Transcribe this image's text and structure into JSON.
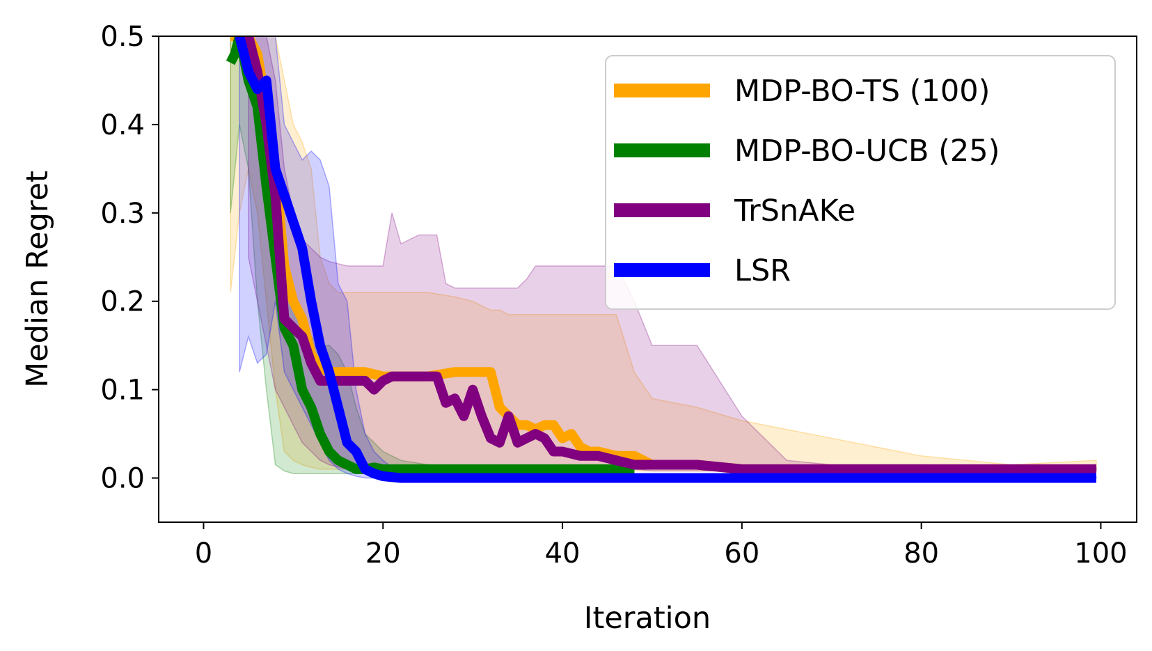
{
  "chart_data": {
    "type": "line",
    "title": "",
    "xlabel": "Iteration",
    "ylabel": "Median Regret",
    "xlim": [
      -5,
      104
    ],
    "ylim": [
      -0.05,
      0.5
    ],
    "xticks": [
      0,
      20,
      40,
      60,
      80,
      100
    ],
    "xtick_labels": [
      "0",
      "20",
      "40",
      "60",
      "80",
      "100"
    ],
    "yticks": [
      0.0,
      0.1,
      0.2,
      0.3,
      0.4,
      0.5
    ],
    "ytick_labels": [
      "0.0",
      "0.1",
      "0.2",
      "0.3",
      "0.4",
      "0.5"
    ],
    "legend_position": "top-right",
    "series": [
      {
        "name": "MDP-BO-TS (100)",
        "color": "#FFA500",
        "x": [
          3,
          4,
          5,
          6,
          7,
          8,
          9,
          10,
          11,
          12,
          13,
          14,
          15,
          16,
          18,
          20,
          22,
          25,
          28,
          30,
          32,
          33,
          34,
          35,
          36,
          37,
          38,
          39,
          40,
          41,
          42,
          43,
          44,
          46,
          48,
          50,
          55,
          60,
          70,
          80,
          90,
          99.5
        ],
        "values": [
          0.5,
          0.5,
          0.5,
          0.48,
          0.42,
          0.35,
          0.24,
          0.2,
          0.18,
          0.14,
          0.125,
          0.12,
          0.12,
          0.12,
          0.12,
          0.115,
          0.115,
          0.115,
          0.12,
          0.12,
          0.12,
          0.08,
          0.07,
          0.06,
          0.06,
          0.055,
          0.06,
          0.06,
          0.045,
          0.05,
          0.035,
          0.03,
          0.03,
          0.025,
          0.025,
          0.015,
          0.015,
          0.01,
          0.01,
          0.01,
          0.01,
          0.01
        ],
        "band_upper": [
          0.5,
          0.5,
          0.5,
          0.5,
          0.5,
          0.5,
          0.45,
          0.4,
          0.38,
          0.35,
          0.25,
          0.22,
          0.21,
          0.21,
          0.21,
          0.21,
          0.21,
          0.21,
          0.205,
          0.2,
          0.19,
          0.19,
          0.185,
          0.185,
          0.185,
          0.185,
          0.185,
          0.185,
          0.185,
          0.185,
          0.185,
          0.185,
          0.185,
          0.185,
          0.12,
          0.09,
          0.08,
          0.065,
          0.045,
          0.025,
          0.015,
          0.02
        ],
        "band_lower": [
          0.21,
          0.3,
          0.35,
          0.3,
          0.2,
          0.1,
          0.03,
          0.02,
          0.015,
          0.012,
          0.01,
          0.01,
          0.01,
          0.01,
          0.01,
          0.008,
          0.008,
          0.008,
          0.008,
          0.008,
          0.008,
          0.008,
          0.008,
          0.008,
          0.008,
          0.008,
          0.008,
          0.008,
          0.008,
          0.008,
          0.008,
          0.008,
          0.008,
          0.008,
          0.008,
          0.008,
          0.008,
          0.008,
          0.008,
          0.008,
          0.008,
          0.008
        ]
      },
      {
        "name": "MDP-BO-UCB (25)",
        "color": "#008000",
        "x": [
          3,
          3.5,
          4,
          5,
          6,
          7,
          8,
          9,
          10,
          11,
          12,
          13,
          14,
          15,
          16,
          17,
          18,
          19,
          20,
          22,
          25,
          30,
          40,
          48
        ],
        "values": [
          0.47,
          0.48,
          0.5,
          0.45,
          0.42,
          0.33,
          0.25,
          0.17,
          0.15,
          0.1,
          0.08,
          0.05,
          0.03,
          0.02,
          0.015,
          0.01,
          0.01,
          0.012,
          0.01,
          0.01,
          0.01,
          0.01,
          0.01,
          0.01
        ],
        "band_upper": [
          0.5,
          0.5,
          0.5,
          0.48,
          0.45,
          0.35,
          0.3,
          0.25,
          0.2,
          0.18,
          0.16,
          0.15,
          0.15,
          0.14,
          0.12,
          0.08,
          0.05,
          0.04,
          0.03,
          0.02,
          0.015,
          0.013,
          0.012,
          0.011
        ],
        "band_lower": [
          0.3,
          0.35,
          0.4,
          0.35,
          0.2,
          0.1,
          0.015,
          0.008,
          0.005,
          0.005,
          0.005,
          0.005,
          0.005,
          0.005,
          0.005,
          0.005,
          0.005,
          0.005,
          0.005,
          0.005,
          0.005,
          0.005,
          0.005,
          0.005
        ]
      },
      {
        "name": "TrSnAKe",
        "color": "#800080",
        "x": [
          5,
          6,
          7,
          8,
          9,
          10,
          11,
          12,
          13,
          14,
          16,
          18,
          19,
          20,
          21,
          22,
          24,
          26,
          27,
          28,
          29,
          30,
          31,
          32,
          33,
          34,
          35,
          36,
          37,
          38,
          39,
          40,
          42,
          44,
          46,
          48,
          50,
          55,
          60,
          65,
          70,
          80,
          90,
          99.5
        ],
        "values": [
          0.5,
          0.46,
          0.4,
          0.32,
          0.18,
          0.17,
          0.16,
          0.13,
          0.11,
          0.11,
          0.11,
          0.11,
          0.1,
          0.11,
          0.115,
          0.115,
          0.115,
          0.115,
          0.085,
          0.09,
          0.07,
          0.1,
          0.07,
          0.045,
          0.04,
          0.07,
          0.04,
          0.045,
          0.05,
          0.045,
          0.03,
          0.03,
          0.025,
          0.025,
          0.02,
          0.015,
          0.015,
          0.015,
          0.01,
          0.01,
          0.01,
          0.01,
          0.01,
          0.01
        ],
        "band_upper": [
          0.5,
          0.5,
          0.5,
          0.45,
          0.35,
          0.3,
          0.27,
          0.26,
          0.25,
          0.245,
          0.24,
          0.24,
          0.24,
          0.24,
          0.3,
          0.265,
          0.275,
          0.275,
          0.22,
          0.215,
          0.215,
          0.215,
          0.215,
          0.215,
          0.215,
          0.215,
          0.215,
          0.225,
          0.24,
          0.24,
          0.24,
          0.24,
          0.24,
          0.24,
          0.24,
          0.2,
          0.15,
          0.15,
          0.07,
          0.02,
          0.015,
          0.015,
          0.012,
          0.012
        ],
        "band_lower": [
          0.25,
          0.2,
          0.15,
          0.1,
          0.08,
          0.06,
          0.04,
          0.03,
          0.02,
          0.015,
          0.01,
          0.01,
          0.01,
          0.01,
          0.01,
          0.01,
          0.01,
          0.01,
          0.01,
          0.01,
          0.01,
          0.01,
          0.01,
          0.01,
          0.01,
          0.01,
          0.01,
          0.01,
          0.01,
          0.01,
          0.01,
          0.01,
          0.01,
          0.01,
          0.01,
          0.01,
          0.008,
          0.008,
          0.008,
          0.008,
          0.008,
          0.008,
          0.008,
          0.008
        ]
      },
      {
        "name": "LSR",
        "color": "#0000FF",
        "x": [
          4,
          5,
          6,
          7,
          8,
          9,
          10,
          11,
          12,
          13,
          14,
          15,
          16,
          17,
          18,
          19,
          20,
          22,
          24,
          30,
          40,
          60,
          80,
          99.5
        ],
        "values": [
          0.5,
          0.46,
          0.44,
          0.45,
          0.35,
          0.32,
          0.29,
          0.26,
          0.2,
          0.15,
          0.12,
          0.08,
          0.04,
          0.03,
          0.01,
          0.005,
          0.002,
          0.0,
          0.0,
          0.0,
          0.0,
          0.0,
          0.0,
          0.0
        ],
        "band_upper": [
          0.5,
          0.5,
          0.5,
          0.5,
          0.5,
          0.4,
          0.38,
          0.36,
          0.37,
          0.36,
          0.33,
          0.22,
          0.2,
          0.1,
          0.05,
          0.03,
          0.02,
          0.005,
          0.002,
          0.001,
          0.001,
          0.001,
          0.001,
          0.001
        ],
        "band_lower": [
          0.12,
          0.16,
          0.13,
          0.14,
          0.2,
          0.12,
          0.1,
          0.08,
          0.06,
          0.04,
          0.02,
          0.01,
          0.005,
          0.002,
          0.0,
          0.0,
          0.0,
          0.0,
          0.0,
          0.0,
          0.0,
          0.0,
          0.0,
          0.0
        ]
      }
    ]
  }
}
